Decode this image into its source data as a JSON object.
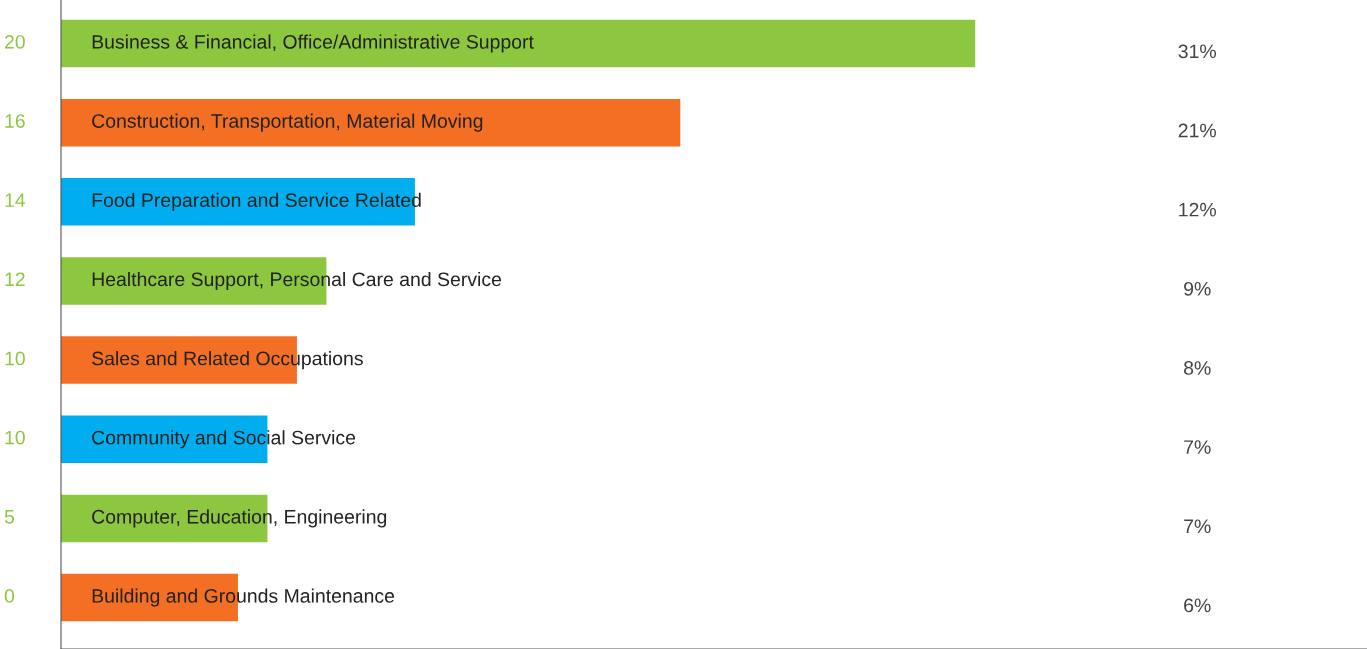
{
  "chart_data": {
    "type": "bar",
    "orientation": "horizontal",
    "categories": [
      "Business & Financial, Office/Administrative Support",
      "Construction, Transportation, Material Moving",
      "Food Preparation and Service Related",
      "Healthcare Support, Personal Care and Service",
      "Sales and Related Occupations",
      "Community and Social Service",
      "Computer, Education, Engineering",
      "Building and Grounds Maintenance"
    ],
    "values": [
      31,
      21,
      12,
      9,
      8,
      7,
      7,
      6
    ],
    "colors": [
      "#8dc63f",
      "#f26f23",
      "#00aeef",
      "#8dc63f",
      "#f26f23",
      "#00aeef",
      "#8dc63f",
      "#f26f23"
    ],
    "value_labels": [
      "31%",
      "21%",
      "12%",
      "9%",
      "8%",
      "7%",
      "7%",
      "6%"
    ],
    "annotations": [
      "20",
      "16",
      "14",
      "12",
      "10",
      "10",
      "5",
      "0"
    ],
    "legend": false
  }
}
